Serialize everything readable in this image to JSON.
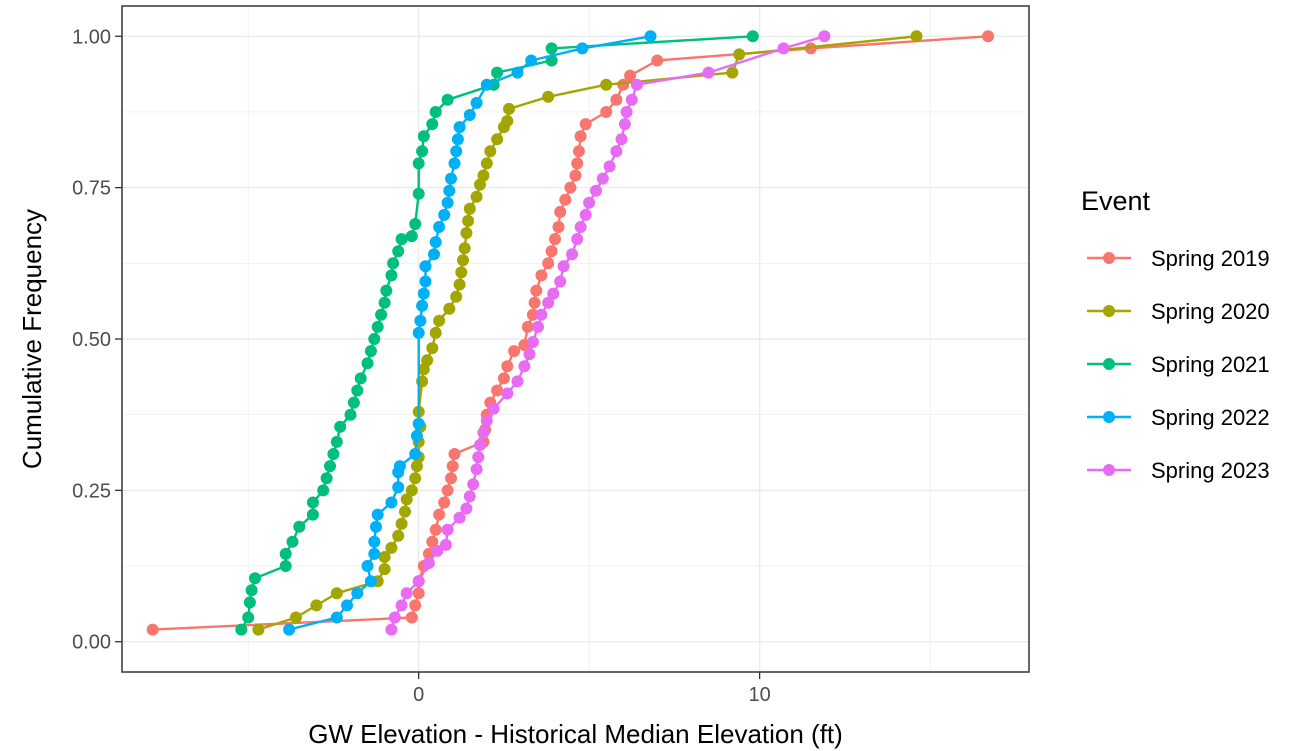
{
  "chart_data": {
    "type": "line",
    "title": "",
    "xlabel": "GW Elevation - Historical Median Elevation (ft)",
    "ylabel": "Cumulative Frequency",
    "xlim": [
      -8.7,
      17.9
    ],
    "ylim": [
      -0.05,
      1.05
    ],
    "x_ticks": [
      0,
      10
    ],
    "y_ticks": [
      0.0,
      0.25,
      0.5,
      0.75,
      1.0
    ],
    "x_tick_labels": [
      "0",
      "10"
    ],
    "y_tick_labels": [
      "0.00",
      "0.25",
      "0.50",
      "0.75",
      "1.00"
    ],
    "grid": true,
    "legend": {
      "title": "Event",
      "position": "right"
    },
    "series": [
      {
        "name": "Spring 2019",
        "color": "#F8766D",
        "points": [
          [
            -7.8,
            0.02
          ],
          [
            -0.2,
            0.04
          ],
          [
            -0.1,
            0.06
          ],
          [
            0.0,
            0.08
          ],
          [
            0.0,
            0.1
          ],
          [
            0.15,
            0.125
          ],
          [
            0.3,
            0.145
          ],
          [
            0.4,
            0.165
          ],
          [
            0.5,
            0.185
          ],
          [
            0.6,
            0.21
          ],
          [
            0.75,
            0.23
          ],
          [
            0.85,
            0.25
          ],
          [
            0.95,
            0.27
          ],
          [
            1.0,
            0.29
          ],
          [
            1.05,
            0.31
          ],
          [
            1.9,
            0.33
          ],
          [
            1.95,
            0.35
          ],
          [
            2.0,
            0.375
          ],
          [
            2.1,
            0.395
          ],
          [
            2.3,
            0.415
          ],
          [
            2.5,
            0.435
          ],
          [
            2.6,
            0.455
          ],
          [
            2.8,
            0.48
          ],
          [
            3.1,
            0.49
          ],
          [
            3.2,
            0.52
          ],
          [
            3.35,
            0.54
          ],
          [
            3.4,
            0.56
          ],
          [
            3.45,
            0.58
          ],
          [
            3.6,
            0.605
          ],
          [
            3.8,
            0.625
          ],
          [
            3.9,
            0.645
          ],
          [
            4.0,
            0.665
          ],
          [
            4.1,
            0.685
          ],
          [
            4.15,
            0.71
          ],
          [
            4.3,
            0.73
          ],
          [
            4.45,
            0.75
          ],
          [
            4.6,
            0.77
          ],
          [
            4.65,
            0.79
          ],
          [
            4.7,
            0.81
          ],
          [
            4.75,
            0.835
          ],
          [
            4.9,
            0.855
          ],
          [
            5.5,
            0.875
          ],
          [
            5.8,
            0.895
          ],
          [
            6.0,
            0.92
          ],
          [
            6.2,
            0.935
          ],
          [
            7.0,
            0.96
          ],
          [
            11.5,
            0.98
          ],
          [
            16.7,
            1.0
          ]
        ]
      },
      {
        "name": "Spring 2020",
        "color": "#A3A500",
        "points": [
          [
            -4.7,
            0.02
          ],
          [
            -3.6,
            0.04
          ],
          [
            -3.0,
            0.06
          ],
          [
            -2.4,
            0.08
          ],
          [
            -1.2,
            0.1
          ],
          [
            -1.0,
            0.12
          ],
          [
            -1.0,
            0.14
          ],
          [
            -0.8,
            0.155
          ],
          [
            -0.6,
            0.175
          ],
          [
            -0.5,
            0.195
          ],
          [
            -0.4,
            0.215
          ],
          [
            -0.35,
            0.235
          ],
          [
            -0.2,
            0.25
          ],
          [
            -0.1,
            0.27
          ],
          [
            -0.05,
            0.29
          ],
          [
            0.0,
            0.305
          ],
          [
            0.0,
            0.33
          ],
          [
            0.05,
            0.355
          ],
          [
            0.0,
            0.38
          ],
          [
            0.1,
            0.43
          ],
          [
            0.15,
            0.45
          ],
          [
            0.25,
            0.465
          ],
          [
            0.4,
            0.485
          ],
          [
            0.5,
            0.51
          ],
          [
            0.6,
            0.53
          ],
          [
            0.9,
            0.55
          ],
          [
            1.1,
            0.57
          ],
          [
            1.2,
            0.59
          ],
          [
            1.25,
            0.61
          ],
          [
            1.3,
            0.63
          ],
          [
            1.35,
            0.65
          ],
          [
            1.4,
            0.675
          ],
          [
            1.45,
            0.695
          ],
          [
            1.5,
            0.715
          ],
          [
            1.7,
            0.735
          ],
          [
            1.8,
            0.755
          ],
          [
            1.9,
            0.77
          ],
          [
            2.0,
            0.79
          ],
          [
            2.1,
            0.81
          ],
          [
            2.3,
            0.83
          ],
          [
            2.5,
            0.85
          ],
          [
            2.6,
            0.86
          ],
          [
            2.65,
            0.88
          ],
          [
            3.8,
            0.9
          ],
          [
            5.5,
            0.92
          ],
          [
            9.2,
            0.94
          ],
          [
            9.4,
            0.97
          ],
          [
            14.6,
            1.0
          ]
        ]
      },
      {
        "name": "Spring 2021",
        "color": "#00BF7D",
        "points": [
          [
            -5.2,
            0.02
          ],
          [
            -5.0,
            0.04
          ],
          [
            -4.95,
            0.065
          ],
          [
            -4.9,
            0.085
          ],
          [
            -4.8,
            0.105
          ],
          [
            -3.9,
            0.125
          ],
          [
            -3.9,
            0.145
          ],
          [
            -3.7,
            0.165
          ],
          [
            -3.5,
            0.19
          ],
          [
            -3.1,
            0.21
          ],
          [
            -3.1,
            0.23
          ],
          [
            -2.8,
            0.25
          ],
          [
            -2.7,
            0.27
          ],
          [
            -2.6,
            0.29
          ],
          [
            -2.5,
            0.31
          ],
          [
            -2.4,
            0.33
          ],
          [
            -2.3,
            0.355
          ],
          [
            -2.0,
            0.375
          ],
          [
            -1.9,
            0.395
          ],
          [
            -1.8,
            0.415
          ],
          [
            -1.7,
            0.435
          ],
          [
            -1.5,
            0.46
          ],
          [
            -1.4,
            0.48
          ],
          [
            -1.3,
            0.5
          ],
          [
            -1.2,
            0.52
          ],
          [
            -1.1,
            0.54
          ],
          [
            -1.0,
            0.56
          ],
          [
            -0.95,
            0.58
          ],
          [
            -0.8,
            0.605
          ],
          [
            -0.75,
            0.625
          ],
          [
            -0.6,
            0.645
          ],
          [
            -0.5,
            0.665
          ],
          [
            -0.2,
            0.67
          ],
          [
            -0.1,
            0.69
          ],
          [
            0.0,
            0.74
          ],
          [
            0.0,
            0.79
          ],
          [
            0.1,
            0.81
          ],
          [
            0.15,
            0.835
          ],
          [
            0.4,
            0.855
          ],
          [
            0.5,
            0.875
          ],
          [
            0.85,
            0.895
          ],
          [
            2.2,
            0.92
          ],
          [
            2.3,
            0.94
          ],
          [
            3.9,
            0.96
          ],
          [
            3.9,
            0.98
          ],
          [
            9.8,
            1.0
          ]
        ]
      },
      {
        "name": "Spring 2022",
        "color": "#00B0F6",
        "points": [
          [
            -3.8,
            0.02
          ],
          [
            -2.4,
            0.04
          ],
          [
            -2.1,
            0.06
          ],
          [
            -1.8,
            0.08
          ],
          [
            -1.4,
            0.1
          ],
          [
            -1.5,
            0.125
          ],
          [
            -1.3,
            0.145
          ],
          [
            -1.3,
            0.165
          ],
          [
            -1.25,
            0.19
          ],
          [
            -1.2,
            0.21
          ],
          [
            -0.8,
            0.23
          ],
          [
            -0.6,
            0.255
          ],
          [
            -0.6,
            0.28
          ],
          [
            -0.55,
            0.29
          ],
          [
            -0.1,
            0.31
          ],
          [
            -0.05,
            0.34
          ],
          [
            0.0,
            0.36
          ],
          [
            0.0,
            0.51
          ],
          [
            0.05,
            0.53
          ],
          [
            0.1,
            0.555
          ],
          [
            0.15,
            0.575
          ],
          [
            0.2,
            0.595
          ],
          [
            0.2,
            0.62
          ],
          [
            0.45,
            0.64
          ],
          [
            0.5,
            0.66
          ],
          [
            0.6,
            0.685
          ],
          [
            0.75,
            0.705
          ],
          [
            0.85,
            0.725
          ],
          [
            0.9,
            0.745
          ],
          [
            0.95,
            0.765
          ],
          [
            1.05,
            0.79
          ],
          [
            1.1,
            0.81
          ],
          [
            1.15,
            0.83
          ],
          [
            1.2,
            0.85
          ],
          [
            1.5,
            0.87
          ],
          [
            1.7,
            0.89
          ],
          [
            2.0,
            0.92
          ],
          [
            2.9,
            0.94
          ],
          [
            3.3,
            0.96
          ],
          [
            4.8,
            0.98
          ],
          [
            6.8,
            1.0
          ]
        ]
      },
      {
        "name": "Spring 2023",
        "color": "#E76BF3",
        "points": [
          [
            -0.8,
            0.02
          ],
          [
            -0.7,
            0.04
          ],
          [
            -0.5,
            0.06
          ],
          [
            -0.35,
            0.08
          ],
          [
            0.0,
            0.1
          ],
          [
            0.3,
            0.13
          ],
          [
            0.55,
            0.15
          ],
          [
            0.8,
            0.16
          ],
          [
            0.85,
            0.185
          ],
          [
            1.2,
            0.205
          ],
          [
            1.4,
            0.22
          ],
          [
            1.5,
            0.24
          ],
          [
            1.6,
            0.26
          ],
          [
            1.7,
            0.285
          ],
          [
            1.75,
            0.305
          ],
          [
            1.8,
            0.325
          ],
          [
            1.9,
            0.345
          ],
          [
            2.0,
            0.365
          ],
          [
            2.2,
            0.385
          ],
          [
            2.6,
            0.41
          ],
          [
            2.9,
            0.43
          ],
          [
            3.1,
            0.455
          ],
          [
            3.25,
            0.475
          ],
          [
            3.35,
            0.495
          ],
          [
            3.5,
            0.52
          ],
          [
            3.6,
            0.54
          ],
          [
            3.8,
            0.56
          ],
          [
            3.95,
            0.575
          ],
          [
            4.15,
            0.595
          ],
          [
            4.25,
            0.62
          ],
          [
            4.5,
            0.64
          ],
          [
            4.65,
            0.665
          ],
          [
            4.75,
            0.685
          ],
          [
            4.9,
            0.705
          ],
          [
            5.0,
            0.725
          ],
          [
            5.2,
            0.745
          ],
          [
            5.4,
            0.765
          ],
          [
            5.6,
            0.785
          ],
          [
            5.8,
            0.81
          ],
          [
            5.95,
            0.83
          ],
          [
            6.05,
            0.855
          ],
          [
            6.1,
            0.875
          ],
          [
            6.25,
            0.895
          ],
          [
            6.4,
            0.92
          ],
          [
            8.5,
            0.94
          ],
          [
            10.7,
            0.98
          ],
          [
            11.9,
            1.0
          ]
        ]
      }
    ]
  }
}
